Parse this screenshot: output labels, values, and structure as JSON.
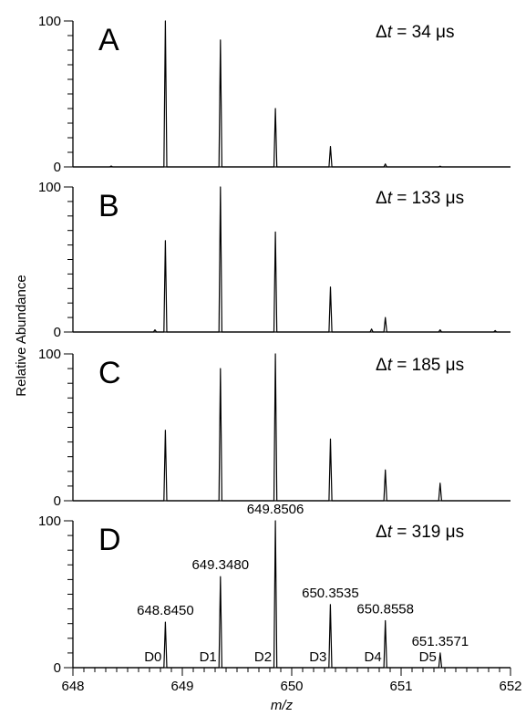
{
  "chart_data": {
    "type": "line",
    "ylabel": "Relative Abundance",
    "xlabel": "m/z",
    "xlim": [
      648,
      652
    ],
    "x_ticks": [
      648,
      649,
      650,
      651,
      652
    ],
    "ylim": [
      0,
      100
    ],
    "y_ticks": [
      0,
      100
    ],
    "grid": false,
    "panels": [
      {
        "letter": "A",
        "dt_text": "= 34 μs",
        "peaks": [
          {
            "mz": 648.35,
            "abundance": 0.6
          },
          {
            "mz": 648.845,
            "abundance": 100
          },
          {
            "mz": 649.348,
            "abundance": 87
          },
          {
            "mz": 649.851,
            "abundance": 40
          },
          {
            "mz": 650.354,
            "abundance": 14
          },
          {
            "mz": 650.856,
            "abundance": 2
          },
          {
            "mz": 651.357,
            "abundance": 0.5
          }
        ]
      },
      {
        "letter": "B",
        "dt_text": "= 133 μs",
        "peaks": [
          {
            "mz": 648.75,
            "abundance": 1.5
          },
          {
            "mz": 648.845,
            "abundance": 63
          },
          {
            "mz": 649.348,
            "abundance": 100
          },
          {
            "mz": 649.851,
            "abundance": 69
          },
          {
            "mz": 650.354,
            "abundance": 31
          },
          {
            "mz": 650.73,
            "abundance": 2
          },
          {
            "mz": 650.856,
            "abundance": 10
          },
          {
            "mz": 651.357,
            "abundance": 1.5
          },
          {
            "mz": 651.86,
            "abundance": 1
          }
        ]
      },
      {
        "letter": "C",
        "dt_text": "= 185 μs",
        "peaks": [
          {
            "mz": 648.845,
            "abundance": 48
          },
          {
            "mz": 649.348,
            "abundance": 90
          },
          {
            "mz": 649.851,
            "abundance": 100
          },
          {
            "mz": 650.354,
            "abundance": 42
          },
          {
            "mz": 650.856,
            "abundance": 21
          },
          {
            "mz": 651.357,
            "abundance": 12
          }
        ]
      },
      {
        "letter": "D",
        "dt_text": "= 319 μs",
        "peaks": [
          {
            "mz": 648.845,
            "abundance": 31,
            "label": "648.8450",
            "d_label": "D0"
          },
          {
            "mz": 649.348,
            "abundance": 62,
            "label": "649.3480",
            "d_label": "D1"
          },
          {
            "mz": 649.8506,
            "abundance": 100,
            "label": "649.8506",
            "d_label": "D2"
          },
          {
            "mz": 650.3535,
            "abundance": 43,
            "label": "650.3535",
            "d_label": "D3"
          },
          {
            "mz": 650.8558,
            "abundance": 32,
            "label": "650.8558",
            "d_label": "D4"
          },
          {
            "mz": 651.3571,
            "abundance": 10,
            "label": "651.3571",
            "d_label": "D5"
          }
        ]
      }
    ]
  }
}
